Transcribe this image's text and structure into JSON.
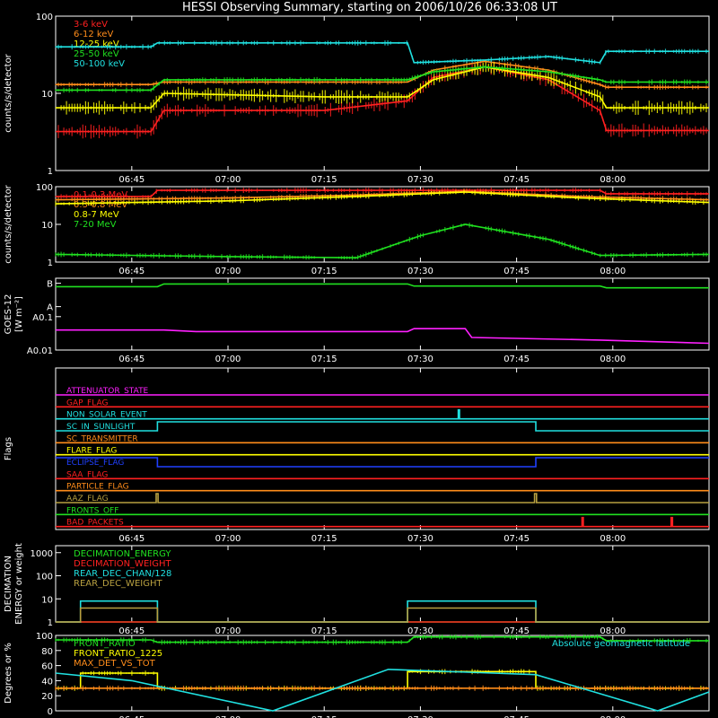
{
  "title": "HESSI Observing Summary, starting on 2006/10/26 06:33:08 UT",
  "time_ticks": [
    "06:45",
    "07:00",
    "07:15",
    "07:30",
    "07:45",
    "08:00"
  ],
  "time_tick_minutes": [
    405,
    420,
    435,
    450,
    465,
    480
  ],
  "time_range_minutes": [
    393.13,
    495
  ],
  "colors": {
    "white": "#ffffff",
    "red": "#ff2020",
    "orange": "#ff8c1a",
    "yellow": "#ffff00",
    "green": "#20e020",
    "cyan": "#20e0e0",
    "magenta": "#ff20ff",
    "blue": "#2040ff",
    "olive": "#b8a040"
  },
  "chart_data": [
    {
      "type": "line",
      "id": "lowE",
      "ylabel": "counts/s/detector",
      "ylog": true,
      "ylim": [
        1,
        100
      ],
      "yticks": [
        "1",
        "10",
        "100"
      ],
      "series": [
        {
          "name": "3-6 keV",
          "color": "#ff2020",
          "x": [
            393.13,
            408,
            410,
            435,
            448,
            452,
            460,
            470,
            478,
            479,
            495
          ],
          "y": [
            3.2,
            3.2,
            6,
            6,
            8,
            16,
            22,
            15,
            6,
            3.3,
            3.3
          ]
        },
        {
          "name": "6-12 keV",
          "color": "#ff8c1a",
          "x": [
            393.13,
            408,
            410,
            435,
            448,
            452,
            460,
            470,
            478,
            479,
            495
          ],
          "y": [
            13,
            13,
            14,
            14,
            14,
            20,
            26,
            20,
            13,
            12,
            12
          ]
        },
        {
          "name": "12-25 keV",
          "color": "#ffff00",
          "x": [
            393.13,
            408,
            410,
            435,
            448,
            452,
            460,
            470,
            478,
            479,
            495
          ],
          "y": [
            6.5,
            6.5,
            10,
            9,
            9,
            15,
            22,
            16,
            9,
            6.5,
            6.5
          ]
        },
        {
          "name": "25-50 keV",
          "color": "#20e020",
          "x": [
            393.13,
            408,
            410,
            435,
            448,
            452,
            460,
            470,
            478,
            479,
            495
          ],
          "y": [
            11,
            11,
            15,
            15,
            15,
            19,
            22,
            19,
            15,
            14,
            14
          ]
        },
        {
          "name": "50-100 keV",
          "color": "#20e0e0",
          "x": [
            393.13,
            408,
            409,
            448,
            449,
            460,
            470,
            478,
            479,
            495
          ],
          "y": [
            40,
            40,
            45,
            45,
            25,
            27,
            30,
            25,
            35,
            35
          ]
        }
      ]
    },
    {
      "type": "line",
      "id": "highE",
      "ylabel": "counts/s/detector",
      "ylog": true,
      "ylim": [
        1,
        100
      ],
      "yticks": [
        "1",
        "10",
        "100"
      ],
      "series": [
        {
          "name": "0.1-0.3 MeV",
          "color": "#ff2020",
          "x": [
            393.13,
            408,
            409,
            478,
            479,
            495
          ],
          "y": [
            55,
            55,
            80,
            80,
            65,
            65
          ]
        },
        {
          "name": "0.3-0.8 MeV",
          "color": "#ff8c1a",
          "x": [
            393.13,
            420,
            440,
            457,
            475,
            495
          ],
          "y": [
            45,
            50,
            60,
            75,
            55,
            45
          ]
        },
        {
          "name": "0.8-7 MeV",
          "color": "#ffff00",
          "x": [
            393.13,
            420,
            440,
            457,
            475,
            495
          ],
          "y": [
            35,
            42,
            55,
            72,
            50,
            38
          ]
        },
        {
          "name": "7-20 MeV",
          "color": "#20e020",
          "x": [
            393.13,
            420,
            440,
            450,
            457,
            470,
            478,
            495
          ],
          "y": [
            1.6,
            1.4,
            1.3,
            5,
            10,
            4,
            1.5,
            1.6
          ]
        }
      ]
    },
    {
      "type": "line",
      "id": "goes",
      "ylabel": "GOES-12",
      "ylabel2": "[W m⁻²]",
      "ylog": true,
      "yticks": [
        "A0.01",
        "A0.1",
        "A",
        "B"
      ],
      "series": [
        {
          "name": "",
          "color": "#20e020",
          "x": [
            393.13,
            409,
            410,
            448,
            449,
            478,
            479,
            495
          ],
          "y": [
            2.5,
            2.5,
            3.0,
            3.0,
            2.6,
            2.6,
            2.3,
            2.3
          ]
        },
        {
          "name": "",
          "color": "#ff20ff",
          "x": [
            393.13,
            410,
            415,
            448,
            449,
            457,
            458,
            478,
            495
          ],
          "y": [
            0.5,
            0.5,
            0.45,
            0.45,
            0.55,
            0.55,
            0.3,
            0.25,
            0.2
          ]
        }
      ]
    },
    {
      "type": "line",
      "id": "flags",
      "ylabel": "Flags",
      "series": [
        {
          "name": "ATTENUATOR_STATE",
          "color": "#ff20ff",
          "x": [
            393.13,
            495
          ],
          "y": [
            0,
            0
          ]
        },
        {
          "name": "GAP_FLAG",
          "color": "#ff2020",
          "x": [
            393.13,
            495
          ],
          "y": [
            0,
            0
          ]
        },
        {
          "name": "NON_SOLAR_EVENT",
          "color": "#20e0e0",
          "x": [
            393.13,
            455.9,
            455.9,
            456.1,
            456.1,
            495
          ],
          "y": [
            0,
            0,
            1,
            1,
            0,
            0
          ]
        },
        {
          "name": "SC_IN_SUNLIGHT",
          "color": "#20e0e0",
          "x": [
            393.13,
            409,
            409,
            468,
            468,
            495
          ],
          "y": [
            0,
            0,
            1,
            1,
            0,
            0
          ]
        },
        {
          "name": "SC_TRANSMITTER",
          "color": "#ff8c1a",
          "x": [
            393.13,
            495
          ],
          "y": [
            0,
            0
          ]
        },
        {
          "name": "FLARE_FLAG",
          "color": "#ffff00",
          "x": [
            393.13,
            495
          ],
          "y": [
            0,
            0
          ]
        },
        {
          "name": "ECLIPSE_FLAG",
          "color": "#2040ff",
          "x": [
            393.13,
            409,
            409,
            468,
            468,
            495
          ],
          "y": [
            1,
            1,
            0,
            0,
            1,
            1
          ]
        },
        {
          "name": "SAA_FLAG",
          "color": "#ff2020",
          "x": [
            393.13,
            495
          ],
          "y": [
            0,
            0
          ]
        },
        {
          "name": "PARTICLE_FLAG",
          "color": "#ff8c1a",
          "x": [
            393.13,
            495
          ],
          "y": [
            0,
            0
          ]
        },
        {
          "name": "AAZ_FLAG",
          "color": "#b8a040",
          "x": [
            393.13,
            408.8,
            408.8,
            409.1,
            409.1,
            467.8,
            467.8,
            468.1,
            468.1,
            495
          ],
          "y": [
            0,
            0,
            1,
            1,
            0,
            0,
            1,
            1,
            0,
            0
          ]
        },
        {
          "name": "FRONTS_OFF",
          "color": "#20e020",
          "x": [
            393.13,
            495
          ],
          "y": [
            0,
            0
          ]
        },
        {
          "name": "BAD_PACKETS",
          "color": "#ff2020",
          "x": [
            393.13,
            475.2,
            475.2,
            475.4,
            475.4,
            489.1,
            489.1,
            489.3,
            489.3,
            495
          ],
          "y": [
            0,
            0,
            1,
            1,
            0,
            0,
            1,
            1,
            0,
            0
          ]
        }
      ]
    },
    {
      "type": "line",
      "id": "decim",
      "ylabel": "DECIMATION",
      "ylabel2": "ENERGY or weight",
      "ylog": true,
      "ylim": [
        1,
        2000
      ],
      "yticks": [
        "1",
        "10",
        "100",
        "1000"
      ],
      "series": [
        {
          "name": "DECIMATION_ENERGY",
          "color": "#20e020",
          "x": [
            393.13,
            495
          ],
          "y": [
            1,
            1
          ]
        },
        {
          "name": "DECIMATION_WEIGHT",
          "color": "#ff2020",
          "x": [
            393.13,
            495
          ],
          "y": [
            1,
            1
          ]
        },
        {
          "name": "REAR_DEC_CHAN/128",
          "color": "#20e0e0",
          "x": [
            393.13,
            397,
            397,
            409,
            409,
            448,
            448,
            468,
            468,
            495
          ],
          "y": [
            1,
            1,
            8,
            8,
            1,
            1,
            8,
            8,
            1,
            1
          ]
        },
        {
          "name": "REAR_DEC_WEIGHT",
          "color": "#b8a040",
          "x": [
            393.13,
            397,
            397,
            409,
            409,
            448,
            448,
            468,
            468,
            495
          ],
          "y": [
            1,
            1,
            4,
            4,
            1,
            1,
            4,
            4,
            1,
            1
          ]
        }
      ]
    },
    {
      "type": "line",
      "id": "ratio",
      "ylabel": "Degrees or %",
      "ylim": [
        0,
        100
      ],
      "yticks": [
        "0",
        "20",
        "40",
        "60",
        "80",
        "100"
      ],
      "series": [
        {
          "name": "FRONT_RATIO",
          "color": "#20e020",
          "x": [
            393.13,
            408,
            409,
            448,
            449,
            478,
            479,
            495
          ],
          "y": [
            94,
            94,
            91,
            91,
            98,
            98,
            93,
            93
          ]
        },
        {
          "name": "FRONT_RATIO_1225",
          "color": "#ffff00",
          "x": [
            393.13,
            397,
            397,
            409,
            409,
            448,
            448,
            468,
            468,
            495
          ],
          "y": [
            30,
            30,
            50,
            50,
            30,
            30,
            52,
            52,
            30,
            30
          ]
        },
        {
          "name": "MAX_DET_VS_TOT",
          "color": "#ff8c1a",
          "x": [
            393.13,
            495
          ],
          "y": [
            30,
            30
          ]
        },
        {
          "name": "Absolute geomagnetic latitude",
          "color": "#20e0e0",
          "x": [
            393.13,
            405,
            427,
            445,
            468,
            487,
            495
          ],
          "y": [
            50,
            40,
            0,
            55,
            48,
            0,
            25
          ]
        }
      ]
    }
  ]
}
